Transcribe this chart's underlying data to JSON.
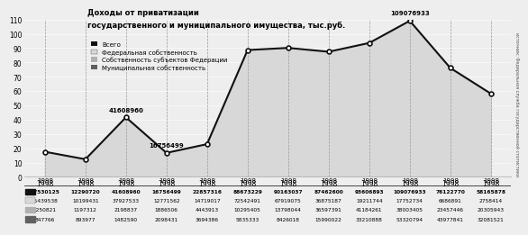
{
  "title_line1": "Доходы от приватизации",
  "title_line2": "государственного и муниципального имущества, тыс.руб.",
  "year_labels": [
    "1998",
    "1998",
    "1998",
    "1998",
    "1998",
    "1998",
    "1998",
    "1998",
    "1998",
    "1998",
    "1998",
    "1998"
  ],
  "total": [
    17530125,
    12290720,
    41608960,
    16756499,
    22857316,
    88673229,
    90163037,
    87462600,
    93606893,
    109076933,
    76122770,
    58165878
  ],
  "federal": [
    15439538,
    10199431,
    37927533,
    12771562,
    14719017,
    72542491,
    67919075,
    36875187,
    19211744,
    17752734,
    6686891,
    2758414
  ],
  "subjects": [
    1250821,
    1197312,
    2198837,
    1886506,
    4443913,
    10295405,
    13798044,
    36597391,
    41184261,
    38003405,
    23457446,
    20305943
  ],
  "municipal": [
    847766,
    893977,
    1482590,
    2098431,
    3694386,
    5835333,
    8426018,
    15990022,
    33210888,
    53320794,
    43977841,
    32081521
  ],
  "annotations": {
    "2": "41608960",
    "3": "16756499",
    "9": "109076933"
  },
  "color_total": "#111111",
  "color_federal": "#d8d8d8",
  "color_subjects": "#b0b0b0",
  "color_municipal": "#606060",
  "bg_color": "#eeeeee",
  "ylim": [
    0,
    110
  ],
  "yticks": [
    0,
    10,
    20,
    30,
    40,
    50,
    60,
    70,
    80,
    90,
    100,
    110
  ],
  "legend_labels": [
    "Всего",
    "Федеральная собственность",
    "Собственность субъектов Федерации",
    "Муниципальная собственность"
  ],
  "source_text": "источник: Федеральная служба государственной статистики"
}
